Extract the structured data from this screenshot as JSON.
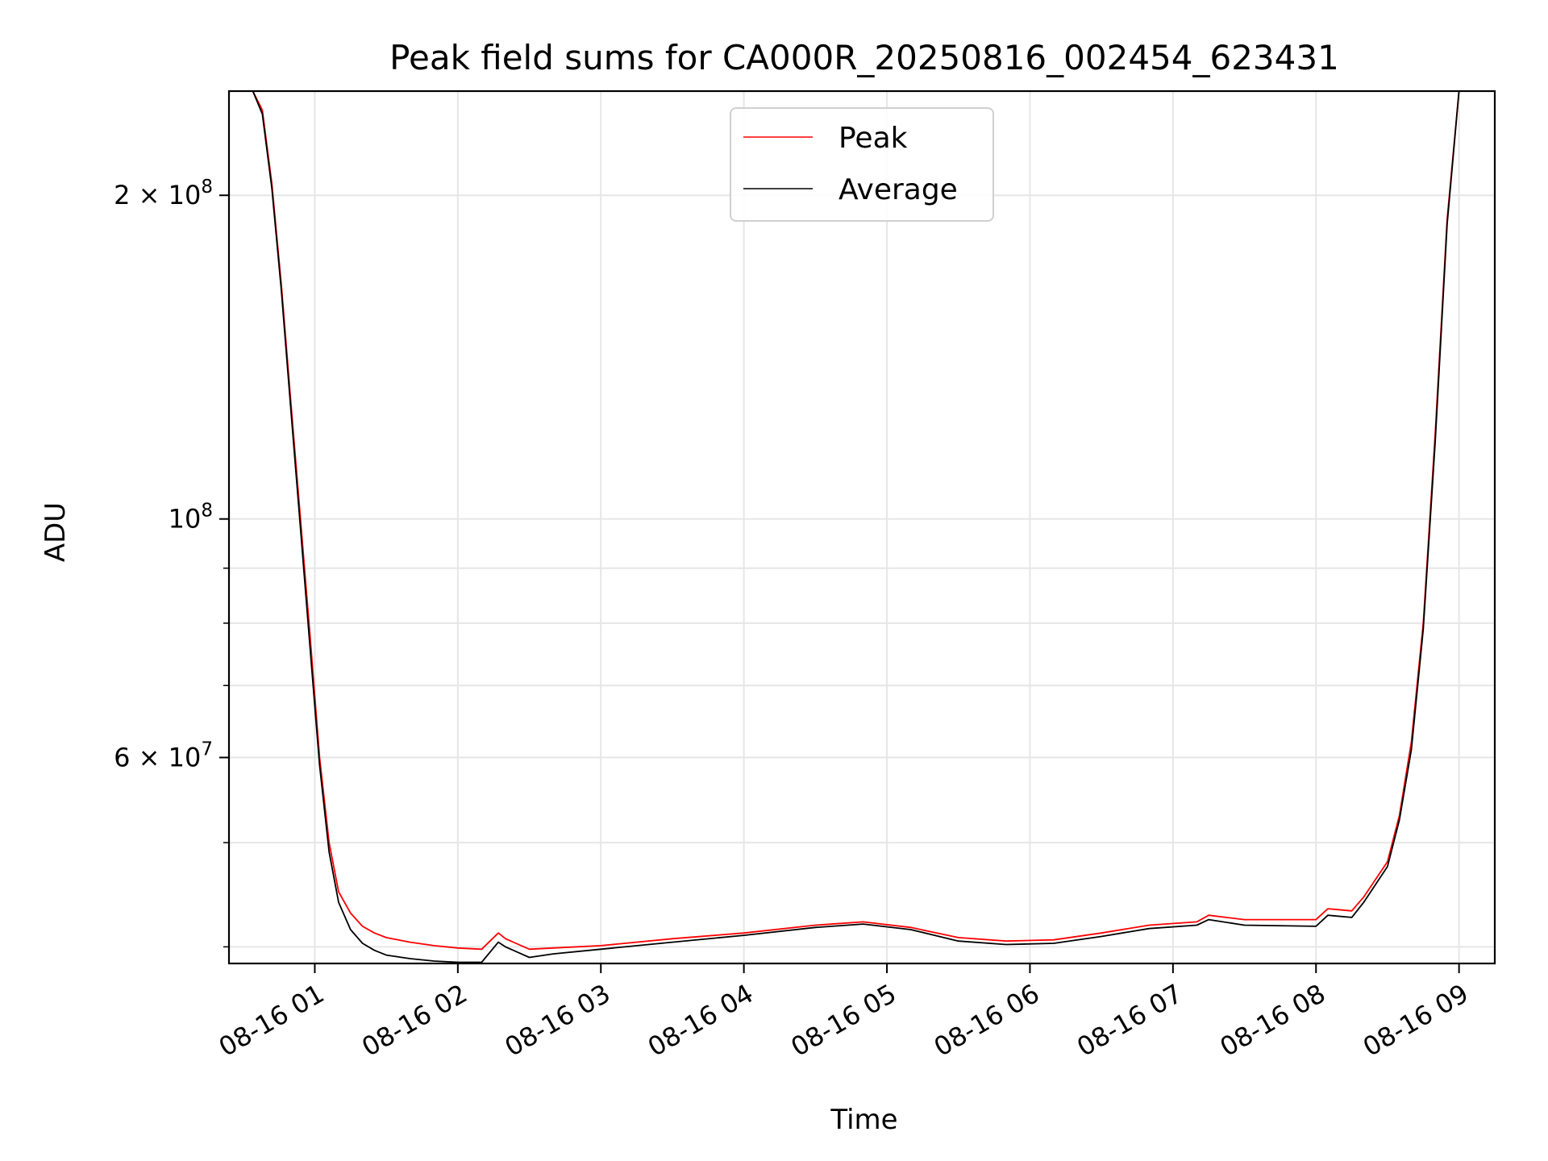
{
  "chart_data": {
    "type": "line",
    "title": "Peak field sums for CA000R_20250816_002454_623431",
    "xlabel": "Time",
    "ylabel": "ADU",
    "y_scale": "log",
    "xlim": [
      "08-16 00:24",
      "08-16 09:15"
    ],
    "ylim": [
      38600000,
      250000000
    ],
    "x_ticks": [
      "08-16 01",
      "08-16 02",
      "08-16 03",
      "08-16 04",
      "08-16 05",
      "08-16 06",
      "08-16 07",
      "08-16 08",
      "08-16 09"
    ],
    "y_ticks": [
      {
        "value": 200000000,
        "base": "2 × 10",
        "exp": "8"
      },
      {
        "value": 100000000,
        "base": "10",
        "exp": "8"
      },
      {
        "value": 60000000,
        "base": "6 × 10",
        "exp": "7"
      }
    ],
    "grid": true,
    "legend_position": "upper-center",
    "series": [
      {
        "name": "Peak",
        "color": "#ff0000",
        "x": [
          "08-16 00:24",
          "08-16 00:34",
          "08-16 00:38",
          "08-16 00:42",
          "08-16 00:46",
          "08-16 00:50",
          "08-16 00:54",
          "08-16 00:58",
          "08-16 01:02",
          "08-16 01:06",
          "08-16 01:10",
          "08-16 01:15",
          "08-16 01:20",
          "08-16 01:25",
          "08-16 01:30",
          "08-16 01:40",
          "08-16 01:50",
          "08-16 02:00",
          "08-16 02:10",
          "08-16 02:17",
          "08-16 02:20",
          "08-16 02:30",
          "08-16 02:40",
          "08-16 03:00",
          "08-16 03:30",
          "08-16 04:00",
          "08-16 04:30",
          "08-16 04:50",
          "08-16 05:10",
          "08-16 05:30",
          "08-16 05:50",
          "08-16 06:10",
          "08-16 06:30",
          "08-16 06:50",
          "08-16 07:10",
          "08-16 07:15",
          "08-16 07:30",
          "08-16 08:00",
          "08-16 08:05",
          "08-16 08:15",
          "08-16 08:20",
          "08-16 08:30",
          "08-16 08:35",
          "08-16 08:40",
          "08-16 08:45",
          "08-16 08:50",
          "08-16 08:55",
          "08-16 09:00",
          "08-16 09:15"
        ],
        "y": [
          250000000,
          250000000,
          240000000,
          205000000,
          165000000,
          128000000,
          100000000,
          78000000,
          60000000,
          50000000,
          45000000,
          43000000,
          41800000,
          41200000,
          40800000,
          40400000,
          40100000,
          39900000,
          39800000,
          41200000,
          40700000,
          39800000,
          39900000,
          40100000,
          40700000,
          41200000,
          41900000,
          42200000,
          41700000,
          40800000,
          40500000,
          40600000,
          41200000,
          41900000,
          42200000,
          42800000,
          42400000,
          42400000,
          43400000,
          43200000,
          44500000,
          48000000,
          53000000,
          62000000,
          80000000,
          120000000,
          190000000,
          250000000,
          250000000
        ]
      },
      {
        "name": "Average",
        "color": "#000000",
        "x": [
          "08-16 00:24",
          "08-16 00:34",
          "08-16 00:38",
          "08-16 00:42",
          "08-16 00:46",
          "08-16 00:50",
          "08-16 00:54",
          "08-16 00:58",
          "08-16 01:02",
          "08-16 01:06",
          "08-16 01:10",
          "08-16 01:15",
          "08-16 01:20",
          "08-16 01:25",
          "08-16 01:30",
          "08-16 01:40",
          "08-16 01:50",
          "08-16 02:00",
          "08-16 02:10",
          "08-16 02:17",
          "08-16 02:20",
          "08-16 02:30",
          "08-16 02:40",
          "08-16 03:00",
          "08-16 03:30",
          "08-16 04:00",
          "08-16 04:30",
          "08-16 04:50",
          "08-16 05:10",
          "08-16 05:30",
          "08-16 05:50",
          "08-16 06:10",
          "08-16 06:30",
          "08-16 06:50",
          "08-16 07:10",
          "08-16 07:15",
          "08-16 07:30",
          "08-16 08:00",
          "08-16 08:05",
          "08-16 08:15",
          "08-16 08:20",
          "08-16 08:30",
          "08-16 08:35",
          "08-16 08:40",
          "08-16 08:45",
          "08-16 08:50",
          "08-16 08:55",
          "08-16 09:00",
          "08-16 09:15"
        ],
        "y": [
          250000000,
          250000000,
          238000000,
          203000000,
          163000000,
          126000000,
          98000000,
          76000000,
          59000000,
          49000000,
          44000000,
          41500000,
          40300000,
          39700000,
          39300000,
          39000000,
          38800000,
          38700000,
          38700000,
          40400000,
          40000000,
          39100000,
          39400000,
          39800000,
          40400000,
          41000000,
          41700000,
          42000000,
          41500000,
          40500000,
          40200000,
          40300000,
          40900000,
          41600000,
          41900000,
          42400000,
          41900000,
          41800000,
          42800000,
          42600000,
          44000000,
          47500000,
          52500000,
          61000000,
          79000000,
          118000000,
          188000000,
          250000000,
          250000000
        ]
      }
    ]
  }
}
